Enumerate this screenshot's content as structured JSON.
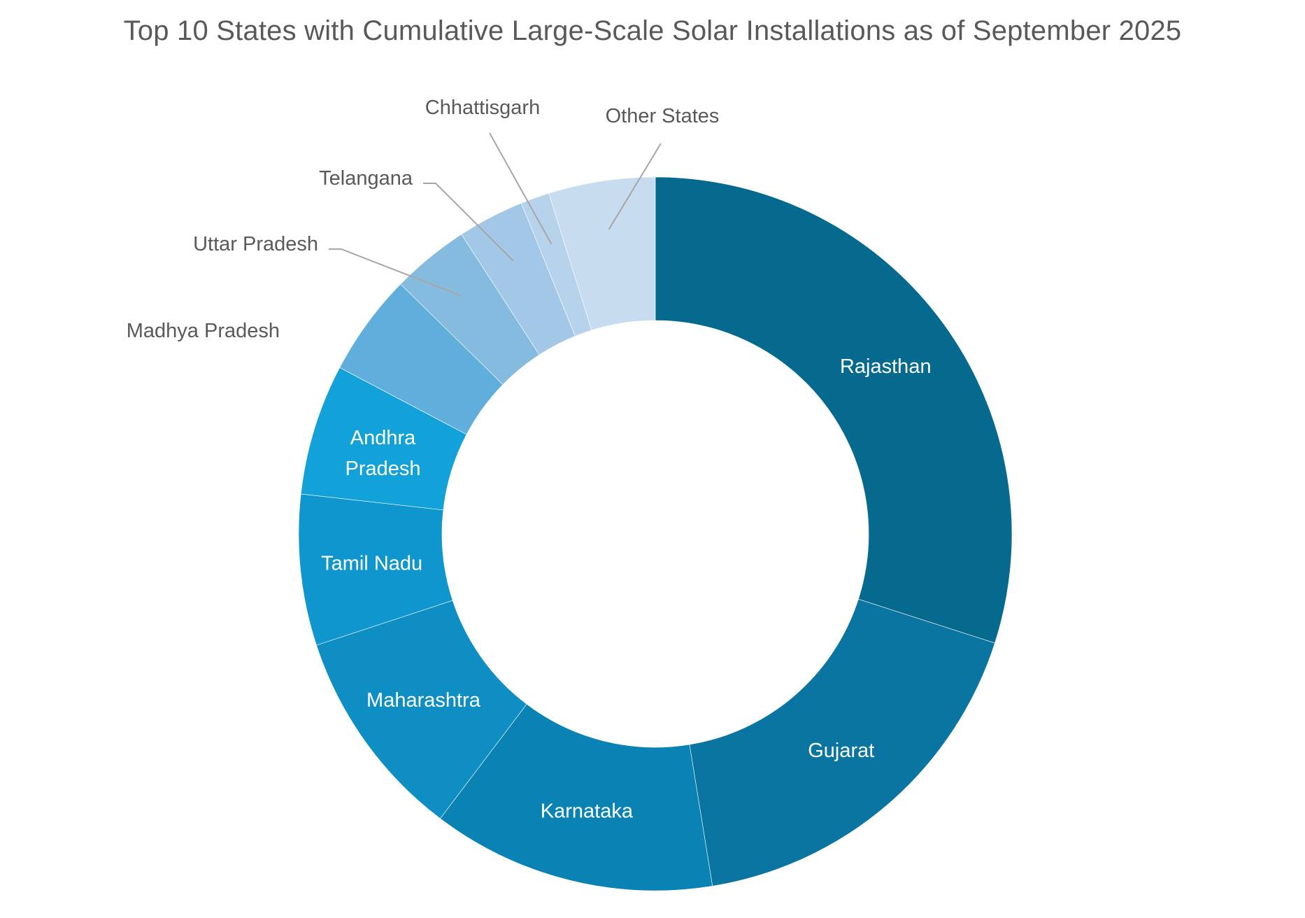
{
  "chart_data": {
    "type": "pie",
    "subtype": "doughnut",
    "title": "Top 10 States with Cumulative Large-Scale Solar Installations as of September 2025",
    "categories": [
      "Rajasthan",
      "Gujarat",
      "Karnataka",
      "Maharashtra",
      "Tamil Nadu",
      "Andhra Pradesh",
      "Madhya Pradesh",
      "Uttar Pradesh",
      "Telangana",
      "Chhattisgarh",
      "Other States"
    ],
    "values": [
      29.8,
      17.4,
      12.8,
      9.6,
      6.8,
      5.9,
      4.6,
      3.5,
      3.0,
      1.3,
      4.8
    ],
    "label_placement": [
      "inside",
      "inside",
      "inside",
      "inside",
      "inside",
      "inside",
      "outside",
      "outside",
      "outside",
      "outside",
      "outside"
    ],
    "colors": [
      "#066A8E",
      "#0A75A0",
      "#0B82B4",
      "#0E8EC3",
      "#0F96CE",
      "#12A1D9",
      "#5FAEDC",
      "#86BBE0",
      "#A3C8E7",
      "#B7D3EC",
      "#C8DCEF"
    ],
    "label_colors": {
      "inside": "#FFFFFF",
      "outside": "#595959"
    },
    "leader_line_color": "#A6A6A6",
    "legend": "none"
  }
}
